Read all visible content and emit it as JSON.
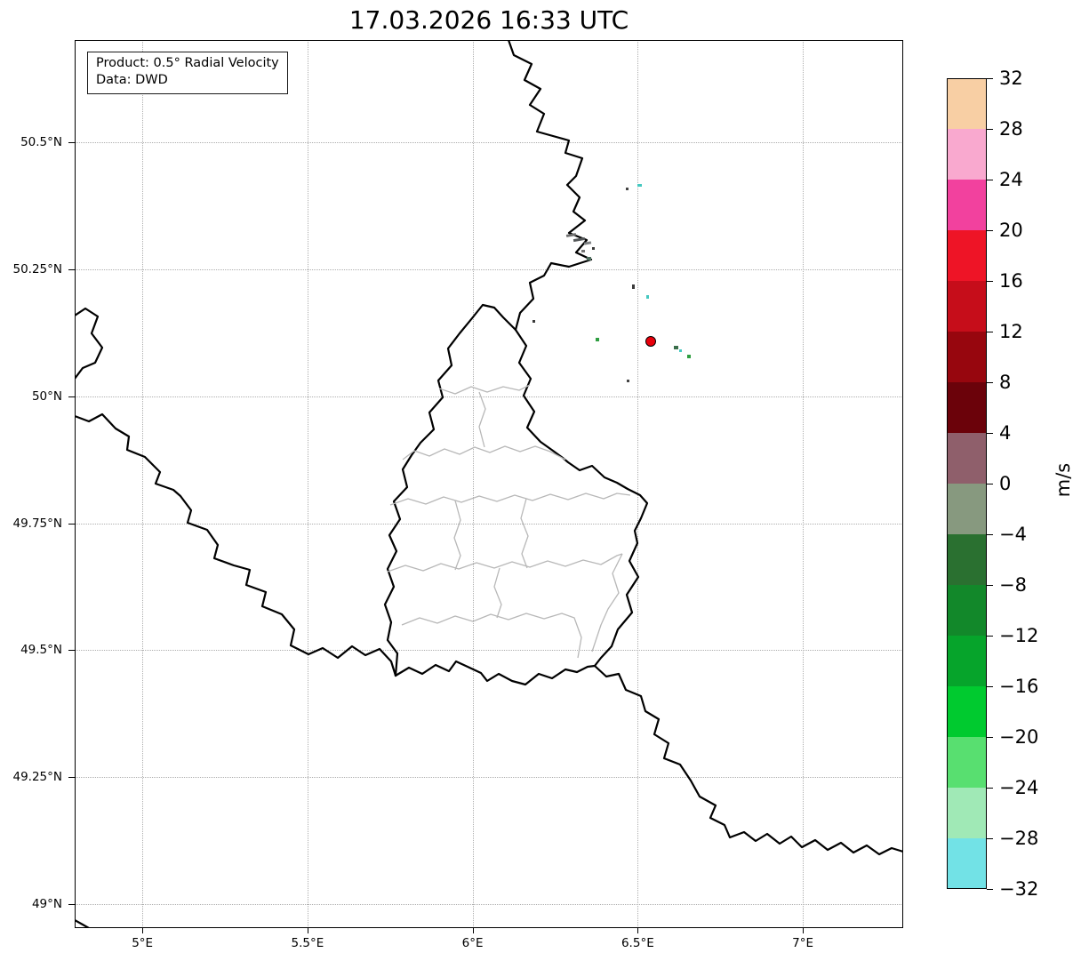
{
  "title": "17.03.2026 16:33 UTC",
  "legend": {
    "line1": "Product: 0.5° Radial Velocity",
    "line2": "Data: DWD"
  },
  "chart_data": {
    "type": "heatmap",
    "title": "17.03.2026 16:33 UTC",
    "product": "0.5° Radial Velocity",
    "data_source": "DWD",
    "grid": "dotted",
    "x_axis": {
      "range": [
        4.795,
        7.304
      ],
      "ticks": [
        {
          "value": 5,
          "label": "5°E"
        },
        {
          "value": 5.5,
          "label": "5.5°E"
        },
        {
          "value": 6,
          "label": "6°E"
        },
        {
          "value": 6.5,
          "label": "6.5°E"
        },
        {
          "value": 7,
          "label": "7°E"
        }
      ]
    },
    "y_axis": {
      "range": [
        48.953,
        50.701
      ],
      "ticks": [
        {
          "value": 50.5,
          "label": "50.5°N"
        },
        {
          "value": 50.25,
          "label": "50.25°N"
        },
        {
          "value": 50,
          "label": "50°N"
        },
        {
          "value": 49.75,
          "label": "49.75°N"
        },
        {
          "value": 49.5,
          "label": "49.5°N"
        },
        {
          "value": 49.25,
          "label": "49.25°N"
        },
        {
          "value": 49,
          "label": "49°N"
        }
      ]
    },
    "colorbar": {
      "label": "m/s",
      "min": -32,
      "max": 32,
      "tick_step": 4,
      "ticks": [
        {
          "value": 32,
          "label": "32"
        },
        {
          "value": 28,
          "label": "28"
        },
        {
          "value": 24,
          "label": "24"
        },
        {
          "value": 20,
          "label": "20"
        },
        {
          "value": 16,
          "label": "16"
        },
        {
          "value": 12,
          "label": "12"
        },
        {
          "value": 8,
          "label": "8"
        },
        {
          "value": 4,
          "label": "4"
        },
        {
          "value": 0,
          "label": "0"
        },
        {
          "value": -4,
          "label": "−4"
        },
        {
          "value": -8,
          "label": "−8"
        },
        {
          "value": -12,
          "label": "−12"
        },
        {
          "value": -16,
          "label": "−16"
        },
        {
          "value": -20,
          "label": "−20"
        },
        {
          "value": -24,
          "label": "−24"
        },
        {
          "value": -28,
          "label": "−28"
        },
        {
          "value": -32,
          "label": "−32"
        }
      ],
      "bands": [
        {
          "from": 28,
          "to": 32,
          "color": "#f8cfa4"
        },
        {
          "from": 24,
          "to": 28,
          "color": "#f9a9cf"
        },
        {
          "from": 20,
          "to": 24,
          "color": "#f2419e"
        },
        {
          "from": 16,
          "to": 20,
          "color": "#ee1426"
        },
        {
          "from": 12,
          "to": 16,
          "color": "#c60d1a"
        },
        {
          "from": 8,
          "to": 12,
          "color": "#97060e"
        },
        {
          "from": 4,
          "to": 8,
          "color": "#6b020a"
        },
        {
          "from": 0,
          "to": 4,
          "color": "#8f5f6b"
        },
        {
          "from": -4,
          "to": 0,
          "color": "#87997f"
        },
        {
          "from": -8,
          "to": -4,
          "color": "#2a7030"
        },
        {
          "from": -12,
          "to": -8,
          "color": "#12882a"
        },
        {
          "from": -16,
          "to": -12,
          "color": "#06a42b"
        },
        {
          "from": -20,
          "to": -16,
          "color": "#00ca2f"
        },
        {
          "from": -24,
          "to": -20,
          "color": "#58df70"
        },
        {
          "from": -28,
          "to": -24,
          "color": "#a0e9b6"
        },
        {
          "from": -32,
          "to": -28,
          "color": "#72e2e6"
        }
      ]
    },
    "radar_site": {
      "lon": 6.54,
      "lat": 50.107,
      "fill": "#e8000b",
      "edge": "#000000"
    },
    "echoes": [
      {
        "lon": 6.298,
        "lat": 50.317,
        "w": 11,
        "h": 3,
        "color": "#6e6e6e",
        "rot": -10
      },
      {
        "lon": 6.323,
        "lat": 50.309,
        "w": 13,
        "h": 3,
        "color": "#55585a",
        "rot": -10
      },
      {
        "lon": 6.348,
        "lat": 50.301,
        "w": 8,
        "h": 3,
        "color": "#7d8082",
        "rot": -10
      },
      {
        "lon": 6.335,
        "lat": 50.285,
        "w": 4,
        "h": 3,
        "color": "#777777"
      },
      {
        "lon": 6.352,
        "lat": 50.27,
        "w": 5,
        "h": 4,
        "color": "#4f6f5f"
      },
      {
        "lon": 6.367,
        "lat": 50.29,
        "w": 3,
        "h": 3,
        "color": "#3a3a3a"
      },
      {
        "lon": 6.505,
        "lat": 50.415,
        "w": 5,
        "h": 3,
        "color": "#45c8c0"
      },
      {
        "lon": 6.468,
        "lat": 50.408,
        "w": 3,
        "h": 3,
        "color": "#444444"
      },
      {
        "lon": 6.488,
        "lat": 50.215,
        "w": 3,
        "h": 5,
        "color": "#3a3a3a"
      },
      {
        "lon": 6.53,
        "lat": 50.196,
        "w": 3,
        "h": 4,
        "color": "#45c8c0"
      },
      {
        "lon": 6.378,
        "lat": 50.112,
        "w": 4,
        "h": 4,
        "color": "#2f9e41"
      },
      {
        "lon": 6.615,
        "lat": 50.095,
        "w": 5,
        "h": 4,
        "color": "#3a6e4a"
      },
      {
        "lon": 6.63,
        "lat": 50.089,
        "w": 3,
        "h": 3,
        "color": "#45c8c0"
      },
      {
        "lon": 6.656,
        "lat": 50.078,
        "w": 4,
        "h": 4,
        "color": "#2f9e41"
      },
      {
        "lon": 6.47,
        "lat": 50.03,
        "w": 3,
        "h": 3,
        "color": "#444444"
      },
      {
        "lon": 6.186,
        "lat": 50.148,
        "w": 3,
        "h": 3,
        "color": "#3a3a3a"
      }
    ]
  }
}
